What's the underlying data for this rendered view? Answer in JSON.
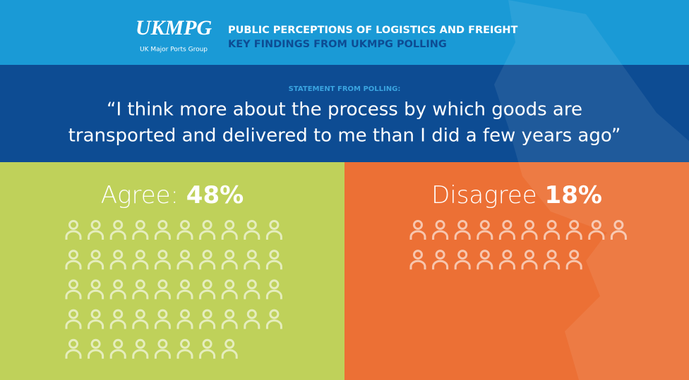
{
  "header": {
    "logo": "UKMPG",
    "logo_subtitle": "UK Major Ports Group",
    "title": "PUBLIC PERCEPTIONS OF LOGISTICS AND FREIGHT",
    "subtitle": "KEY FINDINGS FROM UKMPG POLLING"
  },
  "statement": {
    "label": "STATEMENT FROM POLLING:",
    "lines": [
      "“I think more about the process by which goods are",
      "transported and delivered to me than I did a few years ago”"
    ]
  },
  "panels": [
    {
      "label": "Agree:",
      "value": 48,
      "value_label": "48%",
      "color": "#bfd15a"
    },
    {
      "label": "Disagree",
      "value": 18,
      "value_label": "18%",
      "color": "#ec7035"
    }
  ]
}
